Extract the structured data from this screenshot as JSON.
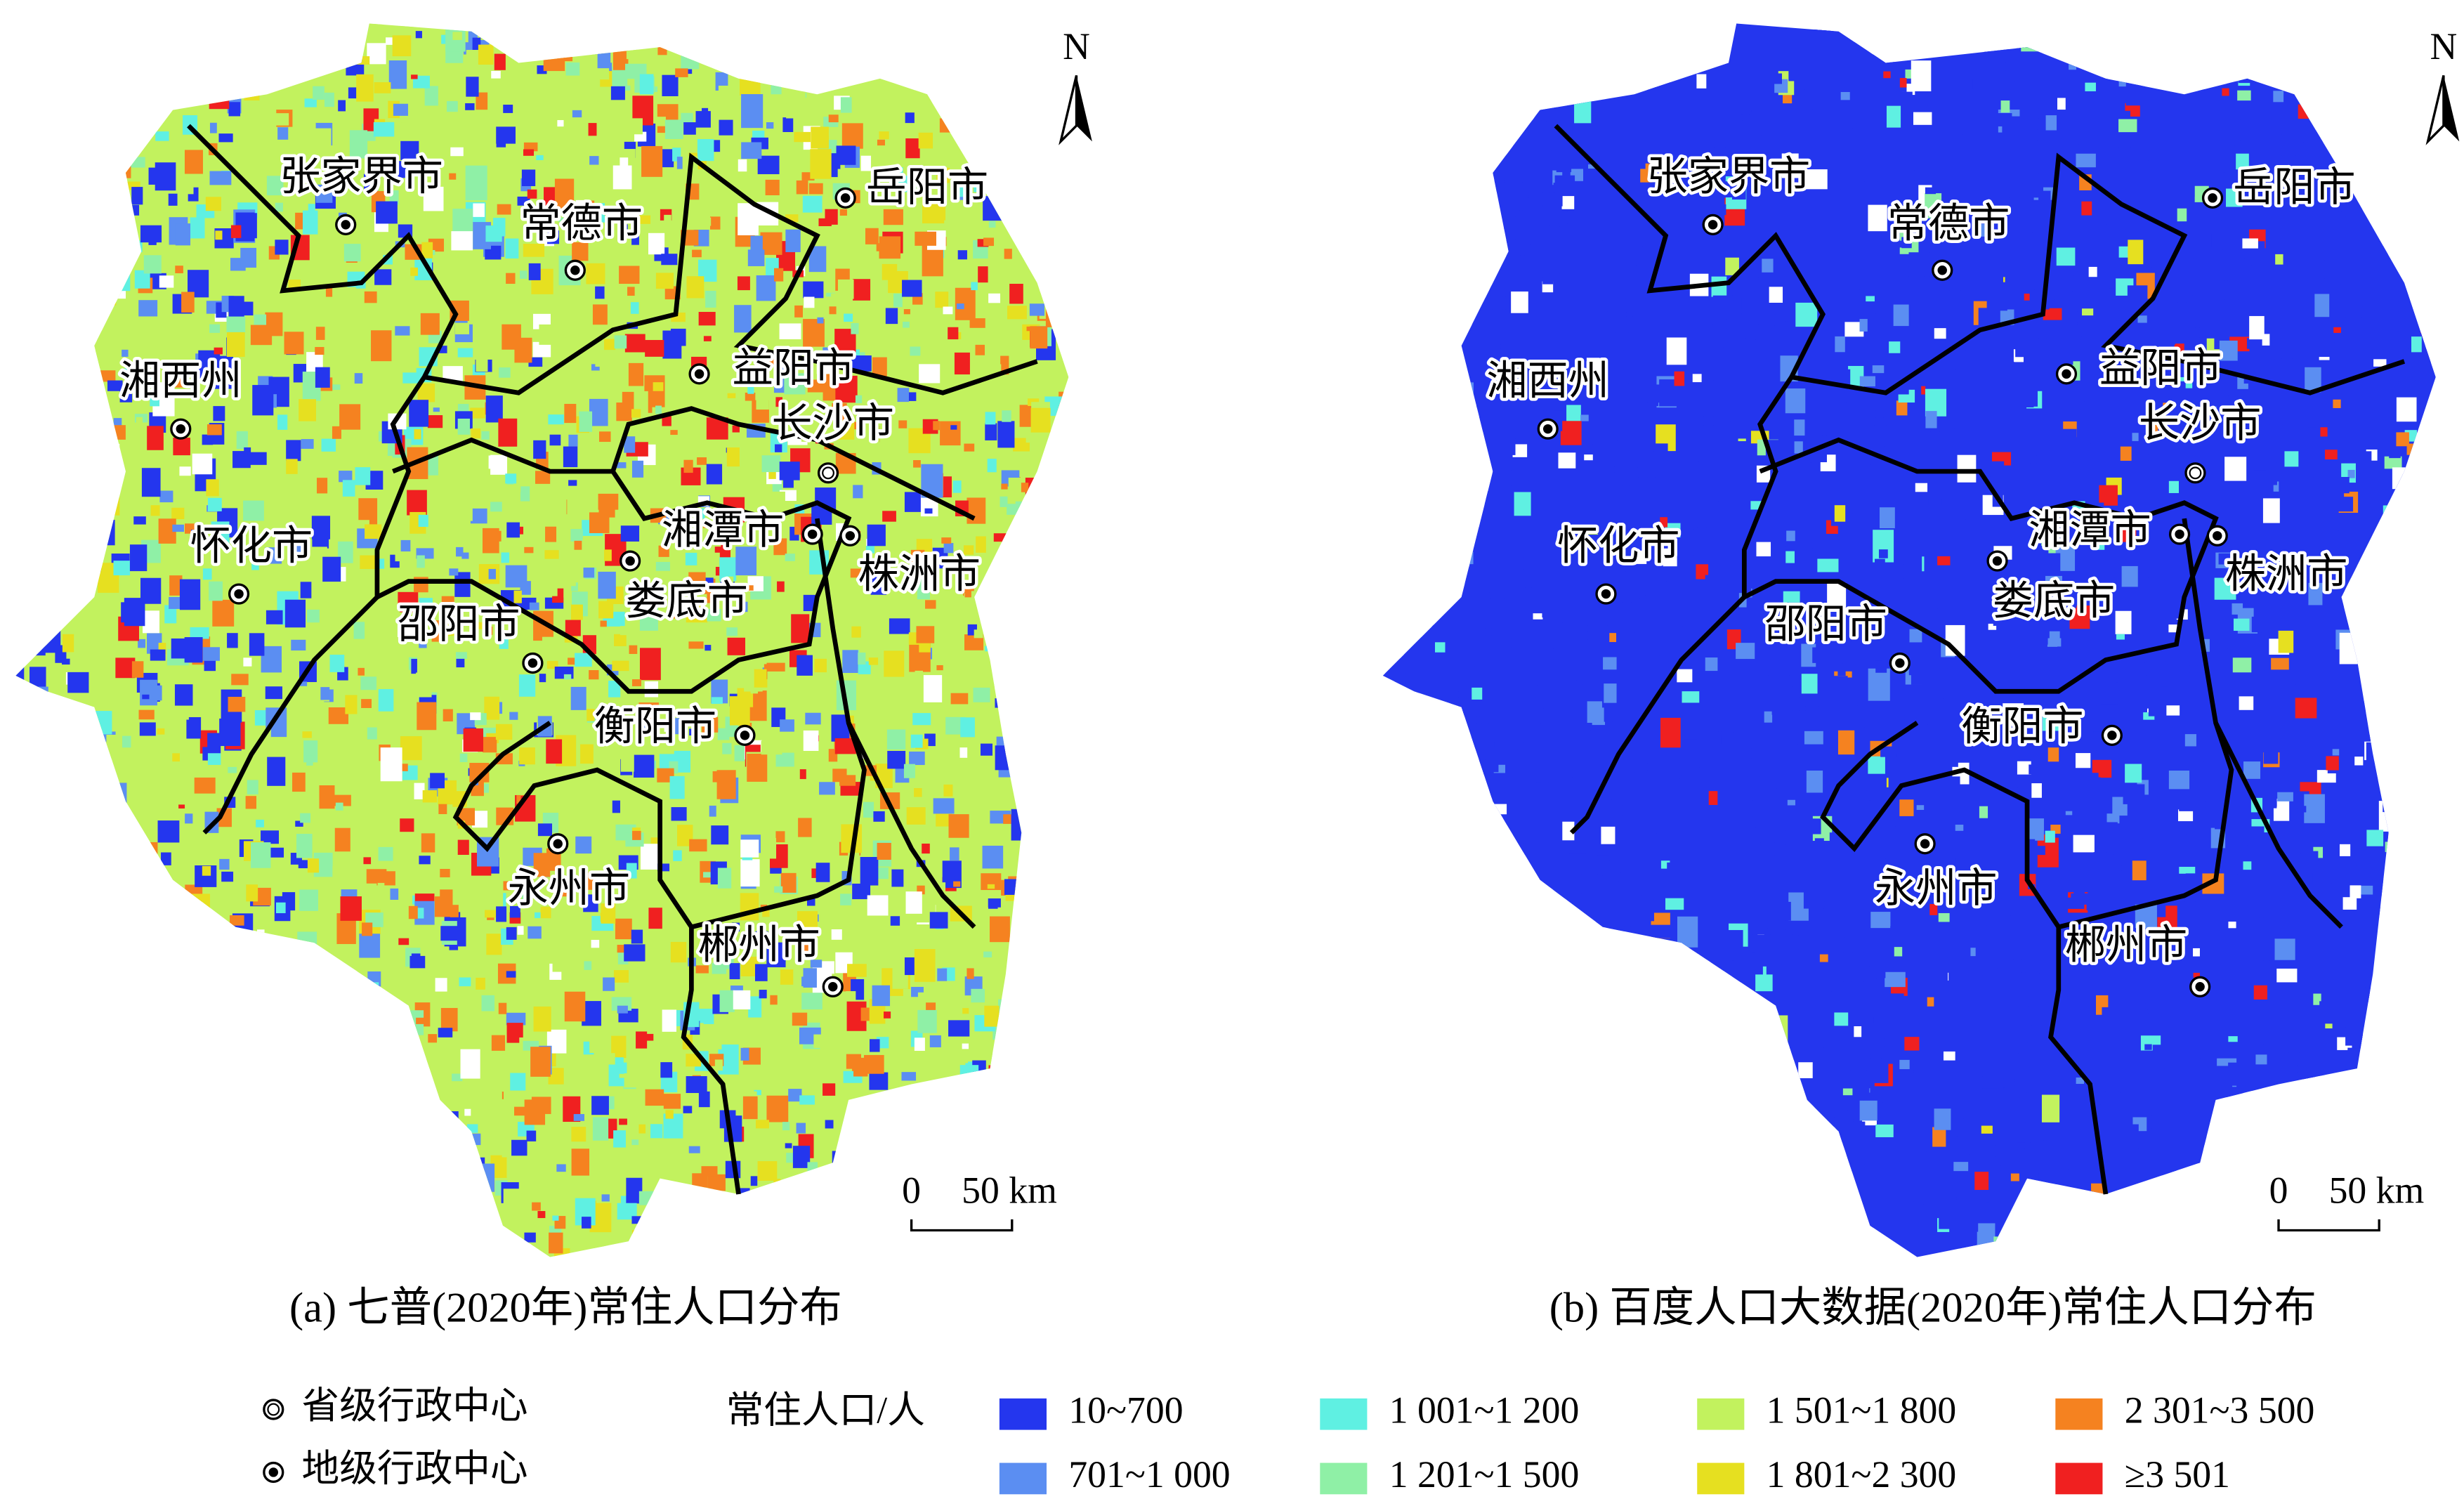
{
  "north": "N",
  "scale_bar": {
    "start": "0",
    "end": "50 km"
  },
  "panels": [
    {
      "caption": "(a) 七普(2020年)常住人口分布",
      "cities": [
        {
          "name": "张家界市"
        },
        {
          "name": "常德市"
        },
        {
          "name": "岳阳市"
        },
        {
          "name": "湘西州"
        },
        {
          "name": "益阳市"
        },
        {
          "name": "长沙市"
        },
        {
          "name": "湘潭市"
        },
        {
          "name": "株洲市"
        },
        {
          "name": "怀化市"
        },
        {
          "name": "娄底市"
        },
        {
          "name": "邵阳市"
        },
        {
          "name": "衡阳市"
        },
        {
          "name": "永州市"
        },
        {
          "name": "郴州市"
        }
      ]
    },
    {
      "caption": "(b) 百度人口大数据(2020年)常住人口分布",
      "cities": [
        {
          "name": "张家界市"
        },
        {
          "name": "常德市"
        },
        {
          "name": "岳阳市"
        },
        {
          "name": "湘西州"
        },
        {
          "name": "益阳市"
        },
        {
          "name": "长沙市"
        },
        {
          "name": "湘潭市"
        },
        {
          "name": "株洲市"
        },
        {
          "name": "怀化市"
        },
        {
          "name": "娄底市"
        },
        {
          "name": "邵阳市"
        },
        {
          "name": "衡阳市"
        },
        {
          "name": "永州市"
        },
        {
          "name": "郴州市"
        }
      ]
    }
  ],
  "symbols": [
    {
      "label": "省级行政中心"
    },
    {
      "label": "地级行政中心"
    }
  ],
  "legend": {
    "title": "常住人口/人",
    "classes": [
      {
        "label": "10~700",
        "color": "#2436ee"
      },
      {
        "label": "701~1 000",
        "color": "#5b8ef2"
      },
      {
        "label": "1 001~1 200",
        "color": "#5ff0e2"
      },
      {
        "label": "1 201~1 500",
        "color": "#8ff0a6"
      },
      {
        "label": "1 501~1 800",
        "color": "#c2f25e"
      },
      {
        "label": "1 801~2 300",
        "color": "#e6e020"
      },
      {
        "label": "2 301~3 500",
        "color": "#f58220"
      },
      {
        "label": "≥3 501",
        "color": "#f02020"
      }
    ]
  }
}
